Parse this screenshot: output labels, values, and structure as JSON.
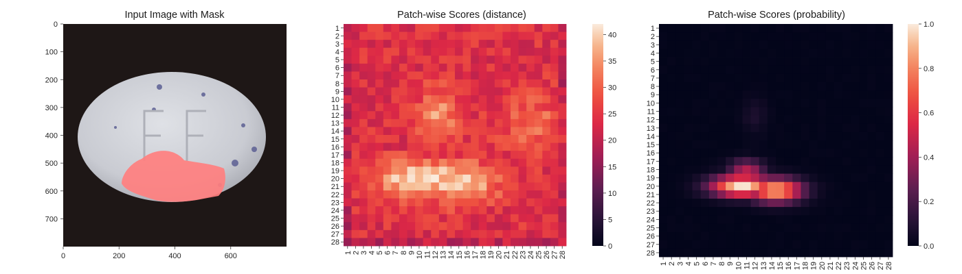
{
  "panels": [
    {
      "title": "Input Image with Mask",
      "type": "image",
      "x_ticks": [
        "0",
        "200",
        "400",
        "600"
      ],
      "y_ticks": [
        "0",
        "100",
        "200",
        "300",
        "400",
        "500",
        "600",
        "700"
      ],
      "image_size": [
        800,
        800
      ],
      "mask_color": "#ff7f7f"
    },
    {
      "title": "Patch-wise Scores (distance)",
      "type": "heatmap",
      "colormap": "rocket",
      "colorbar_ticks": [
        "0",
        "5",
        "10",
        "15",
        "20",
        "25",
        "30",
        "35",
        "40"
      ],
      "colorbar_range": [
        0,
        42
      ]
    },
    {
      "title": "Patch-wise Scores (probability)",
      "type": "heatmap",
      "colormap": "rocket",
      "colorbar_ticks": [
        "0.0",
        "0.2",
        "0.4",
        "0.6",
        "0.8",
        "1.0"
      ],
      "colorbar_range": [
        0,
        1
      ]
    }
  ],
  "chart_data": [
    {
      "type": "heatmap",
      "title": "Patch-wise Scores (distance)",
      "grid_size": [
        28,
        28
      ],
      "row_labels": [
        "1",
        "2",
        "3",
        "4",
        "5",
        "6",
        "7",
        "8",
        "9",
        "10",
        "11",
        "12",
        "13",
        "14",
        "15",
        "16",
        "17",
        "18",
        "19",
        "20",
        "21",
        "22",
        "23",
        "24",
        "25",
        "26",
        "27",
        "28"
      ],
      "col_labels": [
        "1",
        "2",
        "3",
        "4",
        "5",
        "6",
        "7",
        "8",
        "9",
        "10",
        "11",
        "12",
        "13",
        "14",
        "15",
        "16",
        "17",
        "18",
        "19",
        "20",
        "21",
        "22",
        "23",
        "24",
        "25",
        "26",
        "27",
        "28"
      ],
      "value_range": [
        0,
        42
      ],
      "background_level": 24,
      "hotspots": [
        {
          "row": 20,
          "col": 10.5,
          "peak": 42,
          "spread_rows": 1.6,
          "spread_cols": 4.5
        },
        {
          "row": 20.5,
          "col": 15,
          "peak": 40,
          "spread_rows": 1.8,
          "spread_cols": 3.5
        },
        {
          "row": 12,
          "col": 12.5,
          "peak": 35,
          "spread_rows": 2.5,
          "spread_cols": 1.8
        },
        {
          "row": 13,
          "col": 24.5,
          "peak": 31,
          "spread_rows": 2.5,
          "spread_cols": 3.0
        }
      ]
    },
    {
      "type": "heatmap",
      "title": "Patch-wise Scores (probability)",
      "grid_size": [
        28,
        28
      ],
      "row_labels": [
        "1",
        "2",
        "3",
        "4",
        "5",
        "6",
        "7",
        "8",
        "9",
        "10",
        "11",
        "12",
        "13",
        "14",
        "15",
        "16",
        "17",
        "18",
        "19",
        "20",
        "21",
        "22",
        "23",
        "24",
        "25",
        "26",
        "27",
        "28"
      ],
      "col_labels": [
        "1",
        "2",
        "3",
        "4",
        "5",
        "6",
        "7",
        "8",
        "9",
        "10",
        "11",
        "12",
        "13",
        "14",
        "15",
        "16",
        "17",
        "18",
        "19",
        "20",
        "21",
        "22",
        "23",
        "24",
        "25",
        "26",
        "27",
        "28"
      ],
      "value_range": [
        0,
        1
      ],
      "background_level": 0.0,
      "hotspots": [
        {
          "row": 20,
          "col": 10.5,
          "peak": 1.0,
          "spread_rows": 0.9,
          "spread_cols": 2.6
        },
        {
          "row": 20.5,
          "col": 14.5,
          "peak": 0.9,
          "spread_rows": 1.0,
          "spread_cols": 2.2
        },
        {
          "row": 18,
          "col": 11,
          "peak": 0.45,
          "spread_rows": 0.8,
          "spread_cols": 1.5
        },
        {
          "row": 11.5,
          "col": 12,
          "peak": 0.08,
          "spread_rows": 1.5,
          "spread_cols": 1.0
        }
      ]
    }
  ]
}
